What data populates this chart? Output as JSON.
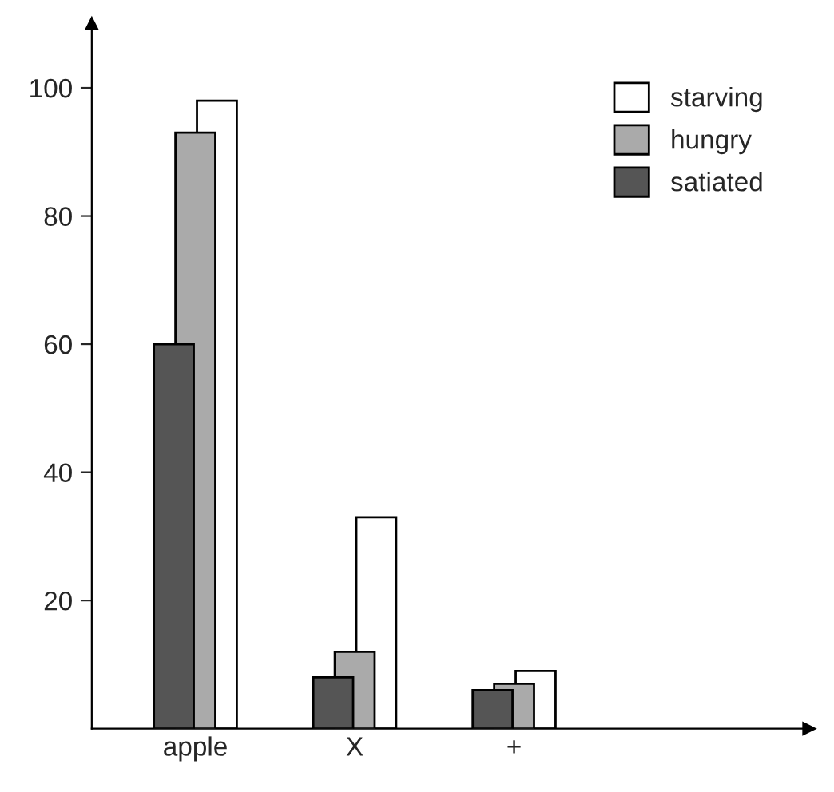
{
  "chart_data": {
    "type": "bar",
    "categories": [
      "apple",
      "X",
      "+"
    ],
    "series": [
      {
        "name": "starving",
        "color": "#ffffff",
        "values": [
          98,
          33,
          9
        ]
      },
      {
        "name": "hungry",
        "color": "#aaaaaa",
        "values": [
          93,
          12,
          7
        ]
      },
      {
        "name": "satiated",
        "color": "#555555",
        "values": [
          60,
          8,
          6
        ]
      }
    ],
    "ylim": [
      0,
      110
    ],
    "yticks": [
      20,
      40,
      60,
      80,
      100
    ],
    "grid": false,
    "legend": "top right"
  }
}
